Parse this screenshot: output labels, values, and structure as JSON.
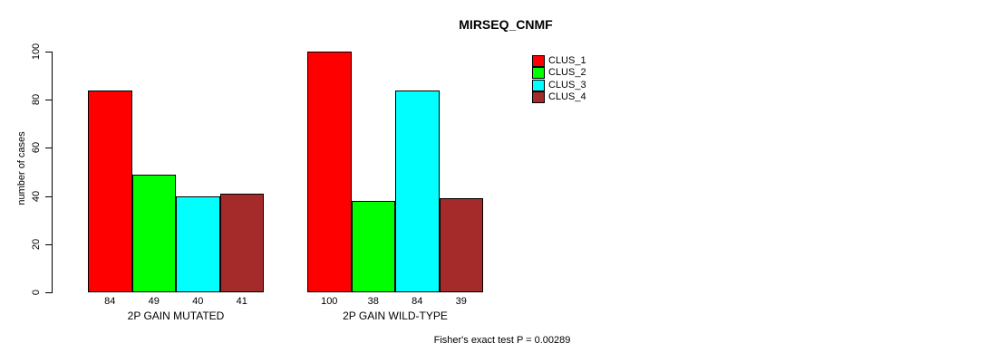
{
  "chart_data": {
    "type": "bar",
    "title": "MIRSEQ_CNMF",
    "ylabel": "number of cases",
    "xlabel": "",
    "annotation": "Fisher's exact test P = 0.00289",
    "ylim": [
      0,
      100
    ],
    "yticks": [
      0,
      20,
      40,
      60,
      80,
      100
    ],
    "grid": false,
    "legend_position": "top-right",
    "categories": [
      "2P GAIN MUTATED",
      "2P GAIN WILD-TYPE"
    ],
    "series": [
      {
        "name": "CLUS_1",
        "color": "#FF0000",
        "values": [
          84,
          100
        ]
      },
      {
        "name": "CLUS_2",
        "color": "#00FF00",
        "values": [
          49,
          38
        ]
      },
      {
        "name": "CLUS_3",
        "color": "#00FFFF",
        "values": [
          40,
          84
        ]
      },
      {
        "name": "CLUS_4",
        "color": "#A52A2A",
        "values": [
          41,
          39
        ]
      }
    ],
    "bar_value_labels": [
      [
        84,
        49,
        40,
        41
      ],
      [
        100,
        38,
        84,
        39
      ]
    ],
    "axis_color": "#000000",
    "background_color": "#FFFFFF"
  }
}
